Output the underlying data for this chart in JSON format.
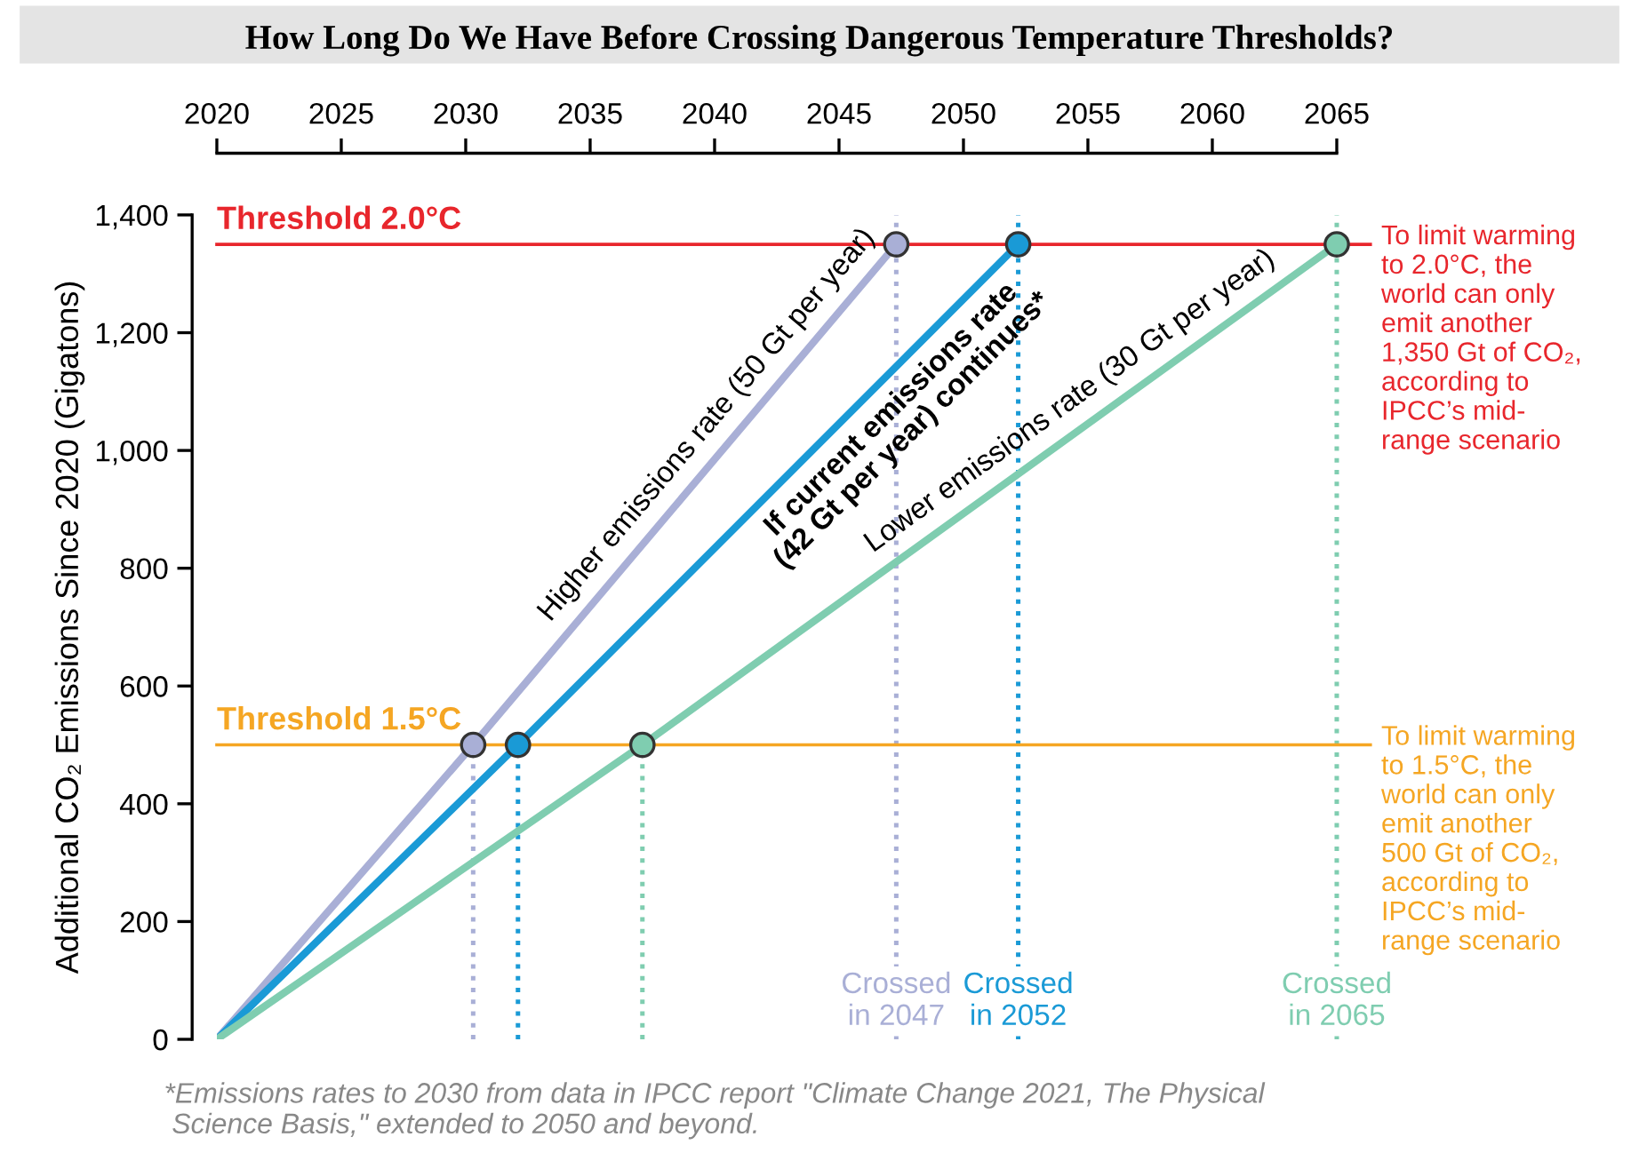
{
  "chart_data": {
    "type": "line",
    "title": "How Long Do We Have Before Crossing Dangerous Temperature Thresholds?",
    "ylabel": "Additional CO₂ Emissions Since 2020 (Gigatons)",
    "xlim": [
      2020,
      2065
    ],
    "xticks": [
      2020,
      2025,
      2030,
      2035,
      2040,
      2045,
      2050,
      2055,
      2060,
      2065
    ],
    "ylim": [
      0,
      1400
    ],
    "yticks": [
      {
        "value": 0,
        "label": "0"
      },
      {
        "value": 200,
        "label": "200"
      },
      {
        "value": 400,
        "label": "400"
      },
      {
        "value": 600,
        "label": "600"
      },
      {
        "value": 800,
        "label": "800"
      },
      {
        "value": 1000,
        "label": "1,000"
      },
      {
        "value": 1200,
        "label": "1,200"
      },
      {
        "value": 1400,
        "label": "1,400"
      }
    ],
    "series": [
      {
        "color": "#a9afd6",
        "x": [
          2020,
          2030.3,
          2047.3
        ],
        "values": [
          0,
          500,
          1350
        ]
      },
      {
        "color": "#1a9ad6",
        "x": [
          2020,
          2032.1,
          2052.2
        ],
        "values": [
          0,
          500,
          1350
        ]
      },
      {
        "color": "#7fcdb0",
        "x": [
          2020,
          2037.1,
          2065
        ],
        "values": [
          0,
          500,
          1350
        ]
      },
      {
        "type": "scatter",
        "marker": "circle",
        "color": "#a9afd6",
        "x": [
          2030.3,
          2047.3
        ],
        "values": [
          500,
          1350
        ]
      },
      {
        "type": "scatter",
        "marker": "circle",
        "color": "#1a9ad6",
        "x": [
          2032.1,
          2052.2
        ],
        "values": [
          500,
          1350
        ]
      },
      {
        "type": "scatter",
        "marker": "circle",
        "color": "#7fcdb0",
        "x": [
          2037.1,
          2065
        ],
        "values": [
          500,
          1350
        ]
      }
    ],
    "ref_lines": [
      {
        "axis": "y",
        "value": 1350,
        "label": "Threshold 2.0°C",
        "color": "#e8262c"
      },
      {
        "axis": "y",
        "value": 500,
        "label": "Threshold 1.5°C",
        "color": "#f5a623"
      },
      {
        "axis": "x",
        "value": 2030.3,
        "color": "#a9afd6",
        "line_style": "dotted"
      },
      {
        "axis": "x",
        "value": 2032.1,
        "color": "#1a9ad6",
        "line_style": "dotted"
      },
      {
        "axis": "x",
        "value": 2037.1,
        "color": "#7fcdb0",
        "line_style": "dotted"
      },
      {
        "axis": "x",
        "value": 2047.3,
        "label": "Crossed\nin 2047",
        "color": "#a9afd6",
        "line_style": "dotted"
      },
      {
        "axis": "x",
        "value": 2052.2,
        "label": "Crossed\nin 2052",
        "color": "#1a9ad6",
        "line_style": "dotted"
      },
      {
        "axis": "x",
        "value": 2065,
        "label": "Crossed\nin 2065",
        "color": "#7fcdb0",
        "line_style": "dotted"
      }
    ],
    "annotations": [
      {
        "text": "Higher emissions rate (50 Gt per year)",
        "x": 2040.5,
        "y": 1014
      },
      {
        "text": "If current emissions rate\n(42 Gt per year) continues*",
        "x": 2046.3,
        "y": 1103
      },
      {
        "text": "Lower emissions rate (30 Gt per year)",
        "x": 2054.9,
        "y": 1047
      },
      {
        "text": "To limit warming\nto 2.0°C, the\nworld can only\nemit another\n1,350 Gt of CO₂,\naccording to\nIPCC’s mid-\nrange scenario",
        "x": 2065,
        "y": 1350
      },
      {
        "text": "To limit warming\nto 1.5°C, the\nworld can only\nemit another\n500 Gt of CO₂,\naccording to\nIPCC’s mid-\nrange scenario",
        "x": 2065,
        "y": 500
      },
      "*Emissions rates to 2030 from data in IPCC report \"Climate Change 2021, The Physical\n Science Basis,\" extended to 2050 and beyond."
    ]
  }
}
